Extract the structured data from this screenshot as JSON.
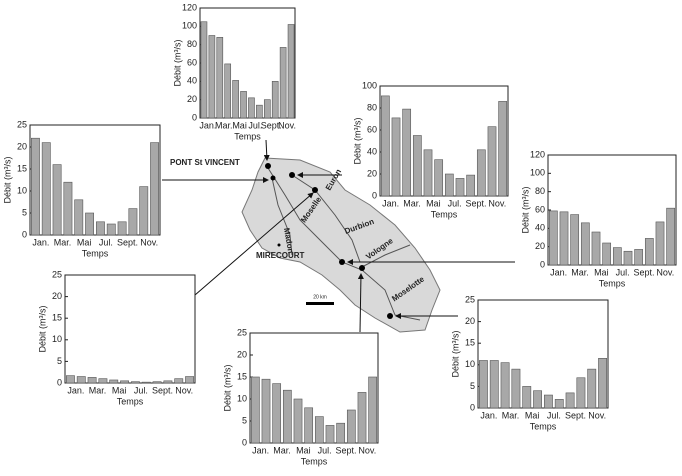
{
  "chart_data": [
    {
      "type": "bar",
      "ylabel": "Débit (m³/s)",
      "xlabel": "Temps",
      "categories": [
        "Jan.",
        null,
        "Mar.",
        null,
        "Mai",
        null,
        "Jul.",
        null,
        "Sept.",
        null,
        "Nov.",
        null
      ],
      "values": [
        105,
        90,
        88,
        59,
        41,
        29,
        22,
        14,
        20,
        40,
        77,
        102
      ],
      "color": "#a8a8a8",
      "ylim": [
        0,
        120
      ],
      "yticks": [
        0,
        20,
        40,
        60,
        80,
        100,
        120
      ]
    },
    {
      "type": "bar",
      "ylabel": "Débit (m³/s)",
      "xlabel": "Temps",
      "categories": [
        "Jan.",
        null,
        "Mar.",
        null,
        "Mai",
        null,
        "Jul.",
        null,
        "Sept.",
        null,
        "Nov.",
        null
      ],
      "values": [
        22,
        21,
        16,
        12,
        8,
        5,
        3,
        2.5,
        3,
        6,
        11,
        21
      ],
      "color": "#a8a8a8",
      "ylim": [
        0,
        25
      ],
      "yticks": [
        0,
        5,
        10,
        15,
        20,
        25
      ]
    },
    {
      "type": "bar",
      "ylabel": "Débit (m³/s)",
      "xlabel": "Temps",
      "categories": [
        "Jan.",
        null,
        "Mar.",
        null,
        "Mai",
        null,
        "Jul.",
        null,
        "Sept.",
        null,
        "Nov.",
        null
      ],
      "values": [
        91,
        71,
        79,
        55,
        42,
        33,
        20,
        16,
        19,
        42,
        63,
        86
      ],
      "color": "#a8a8a8",
      "ylim": [
        0,
        100
      ],
      "yticks": [
        0,
        20,
        40,
        60,
        80,
        100
      ]
    },
    {
      "type": "bar",
      "ylabel": "Débit (m³/s)",
      "xlabel": "Temps",
      "categories": [
        "Jan.",
        null,
        "Mar.",
        null,
        "Mai",
        null,
        "Jul.",
        null,
        "Sept.",
        null,
        "Nov.",
        null
      ],
      "values": [
        59,
        58,
        55,
        46,
        36,
        24,
        19,
        15,
        17,
        29,
        47,
        62
      ],
      "color": "#a8a8a8",
      "ylim": [
        0,
        120
      ],
      "yticks": [
        0,
        20,
        40,
        60,
        80,
        100,
        120
      ]
    },
    {
      "type": "bar",
      "ylabel": "Débit (m³/s)",
      "xlabel": "Temps",
      "categories": [
        "Jan.",
        null,
        "Mar.",
        null,
        "Mai",
        null,
        "Jul.",
        null,
        "Sept.",
        null,
        "Nov.",
        null
      ],
      "values": [
        1.7,
        1.5,
        1.3,
        1.0,
        0.7,
        0.5,
        0.3,
        0.2,
        0.3,
        0.5,
        1.0,
        1.5
      ],
      "color": "#a8a8a8",
      "ylim": [
        0,
        25
      ],
      "yticks": [
        0,
        5,
        10,
        15,
        20,
        25
      ]
    },
    {
      "type": "bar",
      "ylabel": "Débit (m³/s)",
      "xlabel": "Temps",
      "categories": [
        "Jan.",
        null,
        "Mar.",
        null,
        "Mai",
        null,
        "Jul.",
        null,
        "Sept.",
        null,
        "Nov.",
        null
      ],
      "values": [
        15,
        14.5,
        13.5,
        12,
        10,
        8,
        6,
        4,
        4.5,
        7.5,
        11.5,
        15
      ],
      "color": "#a8a8a8",
      "ylim": [
        0,
        25
      ],
      "yticks": [
        0,
        5,
        10,
        15,
        20,
        25
      ]
    },
    {
      "type": "bar",
      "ylabel": "Débit (m³/s)",
      "xlabel": "Temps",
      "categories": [
        "Jan.",
        null,
        "Mar.",
        null,
        "Mai",
        null,
        "Jul.",
        null,
        "Sept.",
        null,
        "Nov.",
        null
      ],
      "values": [
        11,
        11,
        10.5,
        9,
        5,
        4,
        3,
        2,
        3.5,
        7,
        9,
        11.5
      ],
      "color": "#a8a8a8",
      "ylim": [
        0,
        25
      ],
      "yticks": [
        0,
        5,
        10,
        15,
        20,
        25
      ]
    }
  ],
  "map": {
    "labels": [
      "PONT St VINCENT",
      "MIRECOURT",
      "Euron",
      "Moselle",
      "Durbion",
      "Vologne",
      "Moselotte",
      "Madon",
      "20 km"
    ]
  }
}
